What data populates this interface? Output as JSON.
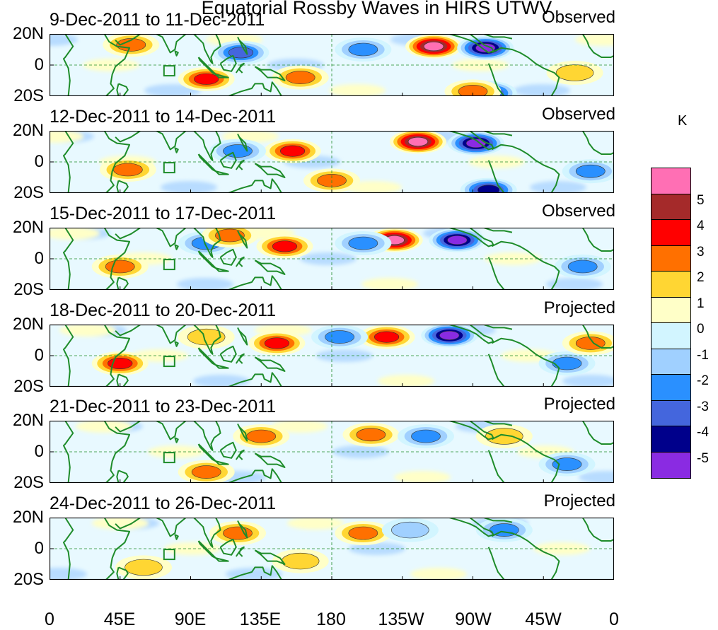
{
  "title": "Equatorial Rossby Waves in HIRS UTWV",
  "unit": "K",
  "lat_labels": [
    "20N",
    "0",
    "20S"
  ],
  "lon_labels": [
    "0",
    "45E",
    "90E",
    "135E",
    "180",
    "135W",
    "90W",
    "45W",
    "0"
  ],
  "panels": [
    {
      "period": "9-Dec-2011 to 11-Dec-2011",
      "status": "Observed"
    },
    {
      "period": "12-Dec-2011 to 14-Dec-2011",
      "status": "Observed"
    },
    {
      "period": "15-Dec-2011 to 17-Dec-2011",
      "status": "Observed"
    },
    {
      "period": "18-Dec-2011 to 20-Dec-2011",
      "status": "Projected"
    },
    {
      "period": "21-Dec-2011 to 23-Dec-2011",
      "status": "Projected"
    },
    {
      "period": "24-Dec-2011 to 26-Dec-2011",
      "status": "Projected"
    }
  ],
  "legend": {
    "labels": [
      "5",
      "4",
      "3",
      "2",
      "1",
      "0",
      "-1",
      "-2",
      "-3",
      "-4",
      "-5"
    ],
    "colors": [
      "#ff6fb4",
      "#a52a2a",
      "#ff0000",
      "#ff7000",
      "#ffd633",
      "#ffffc8",
      "#d2f5ff",
      "#a0d0ff",
      "#2a90ff",
      "#4466dd",
      "#00008b",
      "#8a2be2"
    ]
  },
  "chart_data": {
    "type": "heatmap",
    "title": "Equatorial Rossby Waves in HIRS UTWV",
    "units": "K",
    "lon_range": [
      0,
      360
    ],
    "lat_range": [
      -20,
      20
    ],
    "contour_levels": [
      -5,
      -4,
      -3,
      -2,
      -1,
      0,
      1,
      2,
      3,
      4,
      5
    ],
    "panels": [
      {
        "period": "9-Dec-2011 to 11-Dec-2011",
        "status": "Observed",
        "anomalies": [
          {
            "lon": 245,
            "lat": 12,
            "value": 5.5
          },
          {
            "lon": 278,
            "lat": 11,
            "value": -5.5
          },
          {
            "lon": 100,
            "lat": -9,
            "value": 3.5
          },
          {
            "lon": 160,
            "lat": -8,
            "value": 2.5
          },
          {
            "lon": 122,
            "lat": 8,
            "value": -3.5
          },
          {
            "lon": 280,
            "lat": -18,
            "value": -4.5
          },
          {
            "lon": 270,
            "lat": -17,
            "value": 3
          },
          {
            "lon": 52,
            "lat": 13,
            "value": 2.5
          },
          {
            "lon": 200,
            "lat": 10,
            "value": -3
          },
          {
            "lon": 335,
            "lat": -5,
            "value": 2
          }
        ]
      },
      {
        "period": "12-Dec-2011 to 14-Dec-2011",
        "status": "Observed",
        "anomalies": [
          {
            "lon": 235,
            "lat": 13,
            "value": 5.5
          },
          {
            "lon": 272,
            "lat": 12,
            "value": -5.5
          },
          {
            "lon": 155,
            "lat": 7,
            "value": 4
          },
          {
            "lon": 120,
            "lat": 7,
            "value": -3
          },
          {
            "lon": 50,
            "lat": -5,
            "value": 2.5
          },
          {
            "lon": 180,
            "lat": -12,
            "value": 2.5
          },
          {
            "lon": 280,
            "lat": -18,
            "value": -4.5
          },
          {
            "lon": 345,
            "lat": -6,
            "value": -3
          }
        ]
      },
      {
        "period": "15-Dec-2011 to 17-Dec-2011",
        "status": "Observed",
        "anomalies": [
          {
            "lon": 220,
            "lat": 12,
            "value": 5.5
          },
          {
            "lon": 260,
            "lat": 12,
            "value": -5.5
          },
          {
            "lon": 150,
            "lat": 8,
            "value": 4
          },
          {
            "lon": 45,
            "lat": -5,
            "value": 3
          },
          {
            "lon": 100,
            "lat": 10,
            "value": -3
          },
          {
            "lon": 200,
            "lat": 10,
            "value": -3
          },
          {
            "lon": 340,
            "lat": -5,
            "value": -3
          },
          {
            "lon": 115,
            "lat": 15,
            "value": 3
          }
        ]
      },
      {
        "period": "18-Dec-2011 to 20-Dec-2011",
        "status": "Projected",
        "anomalies": [
          {
            "lon": 215,
            "lat": 12,
            "value": 4
          },
          {
            "lon": 255,
            "lat": 13,
            "value": -5.5
          },
          {
            "lon": 145,
            "lat": 8,
            "value": 3.5
          },
          {
            "lon": 45,
            "lat": -5,
            "value": 3.5
          },
          {
            "lon": 185,
            "lat": 12,
            "value": -3
          },
          {
            "lon": 330,
            "lat": -5,
            "value": -3
          },
          {
            "lon": 345,
            "lat": 8,
            "value": 2.5
          },
          {
            "lon": 100,
            "lat": 12,
            "value": 2
          }
        ]
      },
      {
        "period": "21-Dec-2011 to 23-Dec-2011",
        "status": "Projected",
        "anomalies": [
          {
            "lon": 205,
            "lat": 11,
            "value": 3
          },
          {
            "lon": 240,
            "lat": 10,
            "value": -3
          },
          {
            "lon": 135,
            "lat": 10,
            "value": 2.5
          },
          {
            "lon": 100,
            "lat": -13,
            "value": 2.5
          },
          {
            "lon": 290,
            "lat": 10,
            "value": 2
          },
          {
            "lon": 330,
            "lat": -8,
            "value": -2.5
          }
        ]
      },
      {
        "period": "24-Dec-2011 to 26-Dec-2011",
        "status": "Projected",
        "anomalies": [
          {
            "lon": 200,
            "lat": 10,
            "value": 3
          },
          {
            "lon": 120,
            "lat": 10,
            "value": 3
          },
          {
            "lon": 230,
            "lat": 12,
            "value": -2
          },
          {
            "lon": 290,
            "lat": 12,
            "value": -2.5
          },
          {
            "lon": 160,
            "lat": -8,
            "value": 2
          },
          {
            "lon": 60,
            "lat": -12,
            "value": 1.5
          }
        ]
      }
    ]
  }
}
